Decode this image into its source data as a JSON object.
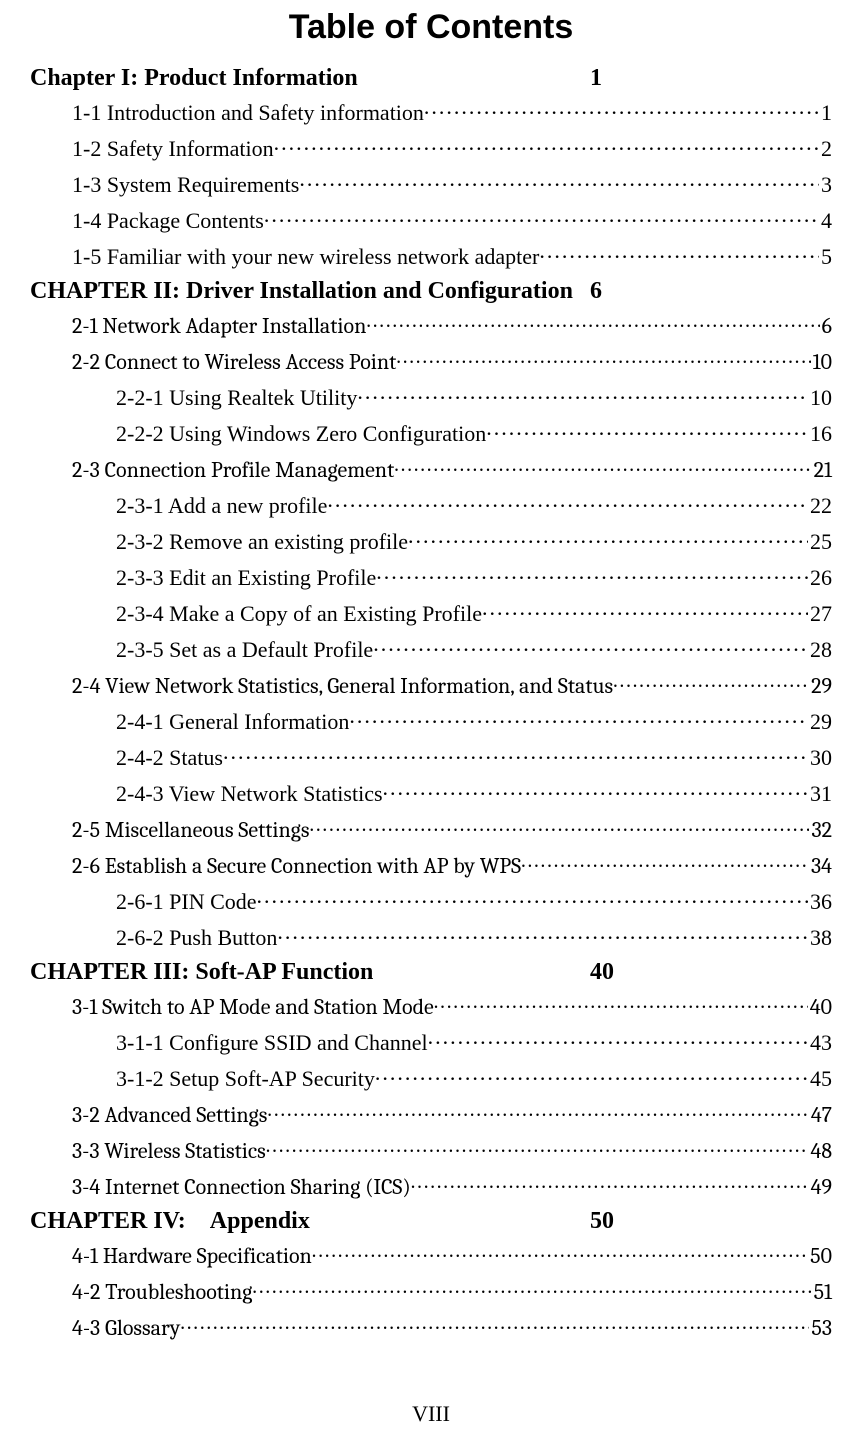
{
  "title": "Table of Contents",
  "page_footer": "VIII",
  "chapters": [
    {
      "heading": "Chapter I: Product Information",
      "page": "1",
      "entries": [
        {
          "indent": 1,
          "alt": false,
          "label": "1-1 Introduction and Safety information",
          "page": "1"
        },
        {
          "indent": 1,
          "alt": false,
          "label": "1-2 Safety Information",
          "page": "2"
        },
        {
          "indent": 1,
          "alt": false,
          "label": "1-3 System Requirements",
          "page": "3"
        },
        {
          "indent": 1,
          "alt": false,
          "label": "1-4 Package Contents",
          "page": "4"
        },
        {
          "indent": 1,
          "alt": false,
          "label": "1-5 Familiar with your new wireless network adapter",
          "page": "5"
        }
      ]
    },
    {
      "heading": "CHAPTER II: Driver Installation and Configuration",
      "page": "6",
      "entries": [
        {
          "indent": 1,
          "alt": true,
          "label": "2-1 Network Adapter Installation",
          "page": "6"
        },
        {
          "indent": 1,
          "alt": true,
          "label": "2-2 Connect to Wireless Access Point",
          "page": "10"
        },
        {
          "indent": 2,
          "alt": false,
          "label": "2-2-1 Using Realtek Utility",
          "page": "10"
        },
        {
          "indent": 2,
          "alt": false,
          "label": "2-2-2 Using Windows Zero Configuration",
          "page": "16"
        },
        {
          "indent": 1,
          "alt": true,
          "label": "2-3 Connection Profile Management",
          "page": "21"
        },
        {
          "indent": 2,
          "alt": false,
          "label": "2-3-1 Add a new profile",
          "page": "22"
        },
        {
          "indent": 2,
          "alt": false,
          "label": "2-3-2 Remove an existing profile",
          "page": "25"
        },
        {
          "indent": 2,
          "alt": false,
          "label": "2-3-3 Edit an Existing Profile",
          "page": "26"
        },
        {
          "indent": 2,
          "alt": false,
          "label": "2-3-4 Make a Copy of an Existing Profile",
          "page": "27"
        },
        {
          "indent": 2,
          "alt": false,
          "label": "2-3-5 Set as a Default Profile",
          "page": "28"
        },
        {
          "indent": 1,
          "alt": true,
          "label": "2-4 View Network Statistics, General Information, and Status",
          "page": "29"
        },
        {
          "indent": 2,
          "alt": false,
          "label": "2-4-1 General Information",
          "page": "29"
        },
        {
          "indent": 2,
          "alt": false,
          "label": "2-4-2 Status",
          "page": "30"
        },
        {
          "indent": 2,
          "alt": false,
          "label": "2-4-3 View Network Statistics",
          "page": "31"
        },
        {
          "indent": 1,
          "alt": true,
          "label": "2-5 Miscellaneous Settings",
          "page": "32"
        },
        {
          "indent": 1,
          "alt": true,
          "label": "2-6 Establish a Secure Connection with AP by WPS",
          "page": "34"
        },
        {
          "indent": 2,
          "alt": false,
          "label": "2-6-1 PIN Code",
          "page": "36"
        },
        {
          "indent": 2,
          "alt": false,
          "label": "2-6-2 Push Button",
          "page": "38"
        }
      ]
    },
    {
      "heading": "CHAPTER III: Soft-AP Function",
      "page": "40",
      "entries": [
        {
          "indent": 1,
          "alt": true,
          "label": "3-1 Switch to AP Mode and Station Mode",
          "page": "40"
        },
        {
          "indent": 2,
          "alt": false,
          "label": "3-1-1 Configure SSID and Channel",
          "page": "43"
        },
        {
          "indent": 2,
          "alt": false,
          "label": "3-1-2 Setup Soft-AP Security",
          "page": "45"
        },
        {
          "indent": 1,
          "alt": true,
          "label": "3-2 Advanced Settings",
          "page": "47"
        },
        {
          "indent": 1,
          "alt": true,
          "label": "3-3 Wireless Statistics",
          "page": "48"
        },
        {
          "indent": 1,
          "alt": true,
          "label": "3-4 Internet Connection Sharing (ICS)",
          "page": "49"
        }
      ]
    },
    {
      "heading": "CHAPTER IV: Appendix",
      "page": "50",
      "entries": [
        {
          "indent": 1,
          "alt": true,
          "label": "4-1 Hardware Specification",
          "page": "50"
        },
        {
          "indent": 1,
          "alt": true,
          "label": "4-2 Troubleshooting",
          "page": "51"
        },
        {
          "indent": 1,
          "alt": true,
          "label": "4-3 Glossary",
          "page": "53"
        }
      ]
    }
  ]
}
